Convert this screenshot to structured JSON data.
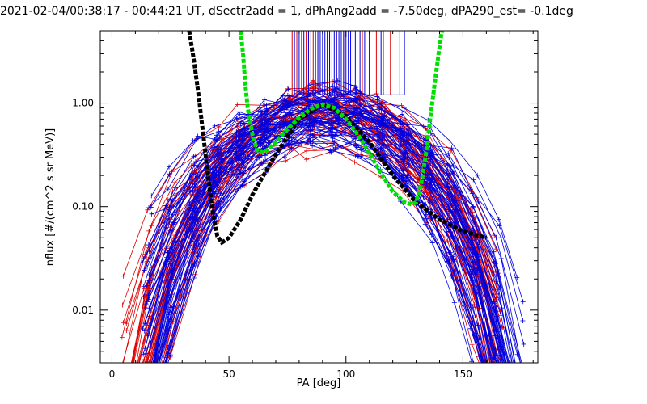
{
  "chart_data": {
    "type": "line",
    "title": "2021-02-04/00:38:17 - 00:44:21 UT, dSectr2add = 1, dPhAng2add = -7.50deg, dPA290_est=  -0.1deg",
    "xlabel": "PA [deg]",
    "ylabel": "nflux [#/(cm^2 s sr MeV)]",
    "xlim": [
      -5,
      182
    ],
    "ylim": [
      0.0031,
      5.0
    ],
    "yscale": "log",
    "x_ticks": [
      0,
      50,
      100,
      150
    ],
    "x_tick_labels": [
      "0",
      "50",
      "100",
      "150"
    ],
    "y_ticks": [
      0.01,
      0.1,
      1.0
    ],
    "y_tick_labels": [
      "0.01",
      "0.10",
      "1.00"
    ],
    "grid": false,
    "legend": "none",
    "series": [
      {
        "color": "#000000",
        "style": "thick dashed",
        "x": [
          33,
          35,
          37,
          39,
          41,
          43,
          45,
          47,
          50,
          55,
          60,
          70,
          80,
          90,
          100,
          110,
          120,
          130,
          140,
          150,
          160
        ],
        "y": [
          5.0,
          2.6,
          1.2,
          0.5,
          0.2,
          0.09,
          0.052,
          0.045,
          0.05,
          0.075,
          0.13,
          0.32,
          0.7,
          0.97,
          0.75,
          0.42,
          0.2,
          0.11,
          0.075,
          0.058,
          0.05
        ]
      },
      {
        "color": "#00e000",
        "style": "thick dashed",
        "x": [
          55,
          56,
          57,
          58,
          60,
          62,
          65,
          70,
          75,
          80,
          85,
          90,
          95,
          100,
          105,
          110,
          115,
          120,
          125,
          128,
          130,
          132,
          134,
          136,
          138,
          140,
          141,
          142
        ],
        "y": [
          5.0,
          3.0,
          1.5,
          0.9,
          0.5,
          0.35,
          0.33,
          0.42,
          0.56,
          0.72,
          0.88,
          0.97,
          0.9,
          0.7,
          0.5,
          0.33,
          0.21,
          0.14,
          0.11,
          0.105,
          0.11,
          0.16,
          0.3,
          0.7,
          1.6,
          3.5,
          5.0,
          5.0
        ]
      }
    ],
    "trace_groups": [
      {
        "color": "#e00000",
        "count": 45,
        "profile": "sin^2 pitch-angle distribution",
        "x": [
          5,
          15,
          25,
          35,
          45,
          55,
          65,
          75,
          85,
          95,
          105,
          115,
          125,
          135,
          145,
          155,
          165
        ],
        "y_range": [
          0.003,
          1.0
        ]
      },
      {
        "color": "#0000e0",
        "count": 60,
        "profile": "sin^2 pitch-angle distribution",
        "x": [
          15,
          25,
          35,
          45,
          55,
          65,
          75,
          85,
          95,
          105,
          115,
          125,
          135,
          145,
          155,
          165,
          175
        ],
        "y_range": [
          0.003,
          1.3
        ]
      }
    ],
    "vertical_markers": {
      "top_value": 1.2,
      "red_x": [
        77,
        79,
        81,
        83,
        86,
        88,
        93,
        96,
        99,
        103,
        107,
        110,
        113,
        116,
        119,
        123
      ],
      "blue_x": [
        78,
        80,
        82,
        84,
        85,
        87,
        88,
        89,
        90,
        91,
        92,
        93,
        94,
        95,
        96,
        97,
        98,
        99,
        100,
        101,
        102,
        104,
        106,
        108,
        110,
        115,
        125
      ]
    }
  }
}
